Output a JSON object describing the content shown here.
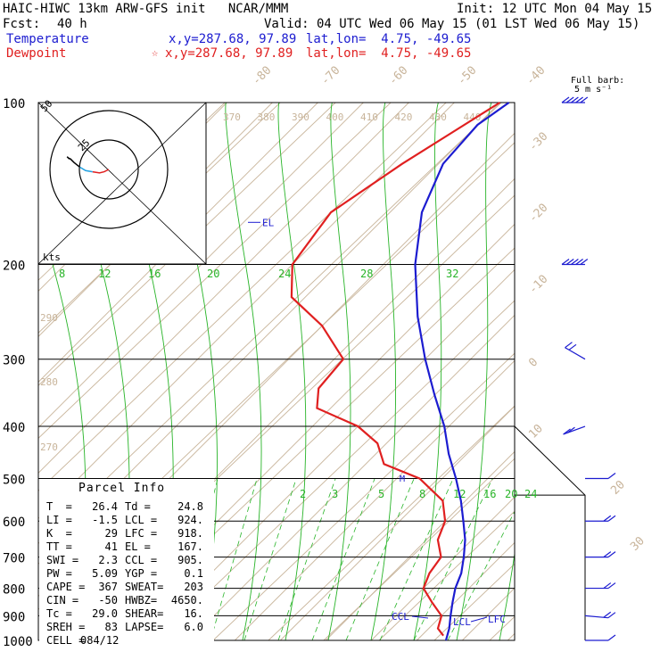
{
  "header": {
    "model_line": "HAIC-HIWC 13km ARW-GFS init   NCAR/MMM",
    "init_line": "Init: 12 UTC Mon 04 May 15",
    "fcst_label": "Fcst:",
    "fcst_value": "40 h",
    "valid_line": "Valid: 04 UTC Wed 06 May 15 (01 LST Wed 06 May 15)",
    "temp_label": "Temperature",
    "temp_xy": "x,y=287.68, 97.89",
    "temp_latlon": "lat,lon=  4.75, -49.65",
    "dew_label": "Dewpoint",
    "dew_xy": "x,y=287.68, 97.89",
    "dew_latlon": "lat,lon=  4.75, -49.65",
    "star_symbol": "☆"
  },
  "barb_legend": {
    "line1": "Full barb:",
    "line2": "5 m s⁻¹"
  },
  "colors": {
    "temperature": "#1c1cd0",
    "dewpoint": "#e02020",
    "isotherm": "#c8b49a",
    "mixing_ratio": "#28b428",
    "isobar": "#000000",
    "hodo_low": "#20a0e0"
  },
  "parcel": {
    "title": "Parcel Info",
    "rows": [
      {
        "k1": "T  =",
        "v1": "26.4",
        "k2": "Td =",
        "v2": "24.8"
      },
      {
        "k1": "LI =",
        "v1": "-1.5",
        "k2": "LCL =",
        "v2": "924."
      },
      {
        "k1": "K  =",
        "v1": "29",
        "k2": "LFC =",
        "v2": "918."
      },
      {
        "k1": "TT =",
        "v1": "41",
        "k2": "EL =",
        "v2": "167."
      },
      {
        "k1": "SWI =",
        "v1": "2.3",
        "k2": "CCL =",
        "v2": "905."
      },
      {
        "k1": "PW =",
        "v1": "5.09",
        "k2": "YGP =",
        "v2": "0.1"
      },
      {
        "k1": "CAPE =",
        "v1": "367",
        "k2": "SWEAT=",
        "v2": "203"
      },
      {
        "k1": "CIN =",
        "v1": "-50",
        "k2": "HWBZ=",
        "v2": "4650."
      },
      {
        "k1": "Tc =",
        "v1": "29.0",
        "k2": "SHEAR=",
        "v2": "16."
      },
      {
        "k1": "SREH =",
        "v1": "83",
        "k2": "LAPSE=",
        "v2": "6.0"
      },
      {
        "k1": "CELL =",
        "v1": "084/12",
        "k2": "",
        "v2": ""
      }
    ]
  },
  "chart_data": {
    "type": "line",
    "title": "Skew-T log-P sounding",
    "pressure_ticks": [
      100,
      200,
      300,
      400,
      500,
      600,
      700,
      800,
      900,
      1000
    ],
    "isotherm_labels": [
      "-80",
      "-70",
      "-60",
      "-50",
      "-40",
      "-30",
      "-20",
      "-10",
      "0",
      "10",
      "20",
      "30",
      "40"
    ],
    "theta_labels_top": [
      "370",
      "380",
      "390",
      "400",
      "410",
      "420",
      "430",
      "440"
    ],
    "theta_labels_left": [
      "290",
      "280",
      "270"
    ],
    "mixing_ratio_labels_upper": [
      "8",
      "12",
      "16",
      "20",
      "24",
      "28",
      "32"
    ],
    "mixing_ratio_labels_lower": [
      "2",
      "3",
      "5",
      "8",
      "12",
      "16",
      "20",
      "24"
    ],
    "level_labels": {
      "el": "EL",
      "ccl": "CCL",
      "lcl": "LCL",
      "lfc": "LFC",
      "mix": "M"
    },
    "series": [
      {
        "name": "Temperature",
        "points": [
          [
            100,
            -78
          ],
          [
            110,
            -80
          ],
          [
            130,
            -79
          ],
          [
            160,
            -73
          ],
          [
            200,
            -63
          ],
          [
            250,
            -51
          ],
          [
            300,
            -40
          ],
          [
            350,
            -30
          ],
          [
            400,
            -21
          ],
          [
            450,
            -14
          ],
          [
            500,
            -7
          ],
          [
            550,
            -1
          ],
          [
            600,
            4
          ],
          [
            650,
            8.5
          ],
          [
            700,
            12
          ],
          [
            750,
            15
          ],
          [
            800,
            17
          ],
          [
            850,
            19.5
          ],
          [
            900,
            22
          ],
          [
            950,
            24.5
          ],
          [
            1000,
            26.4
          ]
        ]
      },
      {
        "name": "Dewpoint",
        "points": [
          [
            100,
            -80
          ],
          [
            130,
            -88
          ],
          [
            160,
            -93
          ],
          [
            200,
            -90
          ],
          [
            230,
            -83
          ],
          [
            260,
            -70
          ],
          [
            300,
            -58
          ],
          [
            340,
            -57
          ],
          [
            370,
            -53
          ],
          [
            400,
            -40
          ],
          [
            430,
            -32
          ],
          [
            470,
            -26
          ],
          [
            500,
            -15
          ],
          [
            550,
            -5
          ],
          [
            600,
            0
          ],
          [
            650,
            2.5
          ],
          [
            700,
            7
          ],
          [
            750,
            8
          ],
          [
            800,
            10
          ],
          [
            850,
            15
          ],
          [
            900,
            20
          ],
          [
            950,
            22
          ],
          [
            980,
            24.8
          ]
        ]
      }
    ],
    "ylim": [
      1000,
      100
    ],
    "wind_barbs_ms": [
      [
        100,
        270,
        25
      ],
      [
        200,
        270,
        25
      ],
      [
        300,
        300,
        10
      ],
      [
        400,
        250,
        8
      ],
      [
        500,
        90,
        7
      ],
      [
        600,
        90,
        8
      ],
      [
        700,
        90,
        10
      ],
      [
        800,
        90,
        10
      ],
      [
        900,
        95,
        8
      ],
      [
        1000,
        90,
        5
      ]
    ]
  },
  "hodograph": {
    "unit_label": "kts",
    "ring_labels": [
      "50",
      "25"
    ],
    "points": [
      [
        0,
        0
      ],
      [
        -4,
        -2
      ],
      [
        -8,
        -3
      ],
      [
        -14,
        -2
      ],
      [
        -20,
        -1
      ],
      [
        -25,
        2
      ],
      [
        -30,
        6
      ],
      [
        -33,
        9
      ],
      [
        -35,
        10
      ],
      [
        -36,
        11
      ],
      [
        -34,
        9
      ]
    ]
  }
}
